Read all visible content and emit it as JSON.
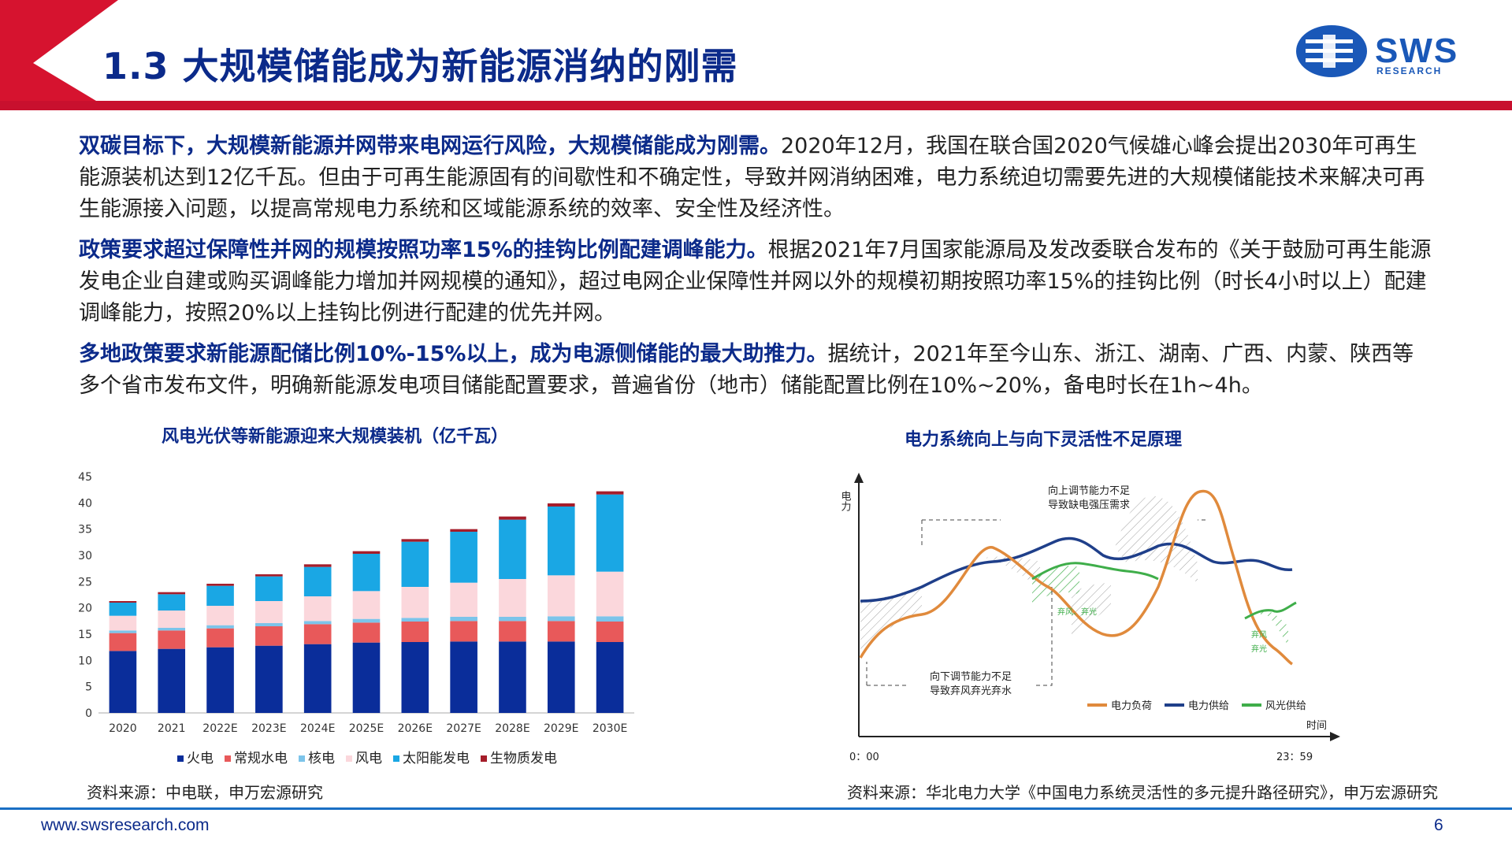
{
  "header": {
    "title": "1.3 大规模储能成为新能源消纳的刚需",
    "logo_text": "SWS",
    "logo_sub": "RESEARCH",
    "colors": {
      "band": "#c8102e",
      "title": "#0b2a8a",
      "logo": "#1a58b8"
    }
  },
  "paragraphs": [
    {
      "lead": "双碳目标下，大规模新能源并网带来电网运行风险，大规模储能成为刚需。",
      "body": "2020年12月，我国在联合国2020气候雄心峰会提出2030年可再生能源装机达到12亿千瓦。但由于可再生能源固有的间歇性和不确定性，导致并网消纳困难，电力系统迫切需要先进的大规模储能技术来解决可再生能源接入问题，以提高常规电力系统和区域能源系统的效率、安全性及经济性。"
    },
    {
      "lead": "政策要求超过保障性并网的规模按照功率15%的挂钩比例配建调峰能力。",
      "body": "根据2021年7月国家能源局及发改委联合发布的《关于鼓励可再生能源发电企业自建或购买调峰能力增加并网规模的通知》，超过电网企业保障性并网以外的规模初期按照功率15%的挂钩比例（时长4小时以上）配建调峰能力，按照20%以上挂钩比例进行配建的优先并网。"
    },
    {
      "lead": "多地政策要求新能源配储比例10%-15%以上，成为电源侧储能的最大助推力。",
      "body": "据统计，2021年至今山东、浙江、湖南、广西、内蒙、陕西等多个省市发布文件，明确新能源发电项目储能配置要求，普遍省份（地市）储能配置比例在10%~20%，备电时长在1h~4h。"
    }
  ],
  "left_chart": {
    "title": "风电光伏等新能源迎来大规模装机（亿千瓦）",
    "source": "资料来源：中电联，申万宏源研究"
  },
  "right_chart": {
    "title": "电力系统向上与向下灵活性不足原理",
    "source": "资料来源：华北电力大学《中国电力系统灵活性的多元提升路径研究》，申万宏源研究",
    "y_axis_label": "电力",
    "x_axis_label": "时间",
    "x_start": "0：00",
    "x_end": "23：59",
    "annotation_up": [
      "向上调节能力不足",
      "导致缺电强压需求"
    ],
    "annotation_down": [
      "向下调节能力不足",
      "导致弃风弃光弃水"
    ],
    "curtail_label_1": "弃风、弃光",
    "curtail_label_2a": "弃风",
    "curtail_label_2b": "弃光",
    "legend": [
      {
        "name": "电力负荷",
        "color": "#e08a3c"
      },
      {
        "name": "电力供给",
        "color": "#1f3f8a"
      },
      {
        "name": "风光供给",
        "color": "#3fae4a"
      }
    ]
  },
  "chart_data": {
    "type": "bar",
    "stacked": true,
    "title": "风电光伏等新能源迎来大规模装机（亿千瓦）",
    "categories": [
      "2020",
      "2021",
      "2022E",
      "2023E",
      "2024E",
      "2025E",
      "2026E",
      "2027E",
      "2028E",
      "2029E",
      "2030E"
    ],
    "ylim": [
      0,
      45
    ],
    "yticks": [
      0,
      5,
      10,
      15,
      20,
      25,
      30,
      35,
      40,
      45
    ],
    "legend_position": "bottom",
    "series": [
      {
        "name": "火电",
        "color": "#0a2d9a",
        "values": [
          11.8,
          12.2,
          12.5,
          12.8,
          13.1,
          13.4,
          13.5,
          13.6,
          13.6,
          13.6,
          13.5
        ]
      },
      {
        "name": "常规水电",
        "color": "#e8595a",
        "values": [
          3.4,
          3.5,
          3.6,
          3.7,
          3.8,
          3.8,
          3.9,
          3.9,
          3.9,
          3.9,
          3.9
        ]
      },
      {
        "name": "核电",
        "color": "#7cc4ea",
        "values": [
          0.5,
          0.5,
          0.6,
          0.6,
          0.6,
          0.7,
          0.7,
          0.8,
          0.8,
          0.9,
          1.0
        ]
      },
      {
        "name": "风电",
        "color": "#fbd7dc",
        "values": [
          2.8,
          3.3,
          3.7,
          4.2,
          4.7,
          5.3,
          5.9,
          6.5,
          7.2,
          7.8,
          8.5
        ]
      },
      {
        "name": "太阳能发电",
        "color": "#1aa7e4",
        "values": [
          2.5,
          3.1,
          3.8,
          4.7,
          5.6,
          7.1,
          8.6,
          9.7,
          11.3,
          13.1,
          14.7
        ]
      },
      {
        "name": "生物质发电",
        "color": "#a51d2a",
        "values": [
          0.3,
          0.4,
          0.4,
          0.4,
          0.5,
          0.5,
          0.5,
          0.5,
          0.6,
          0.6,
          0.6
        ]
      }
    ]
  }
}
